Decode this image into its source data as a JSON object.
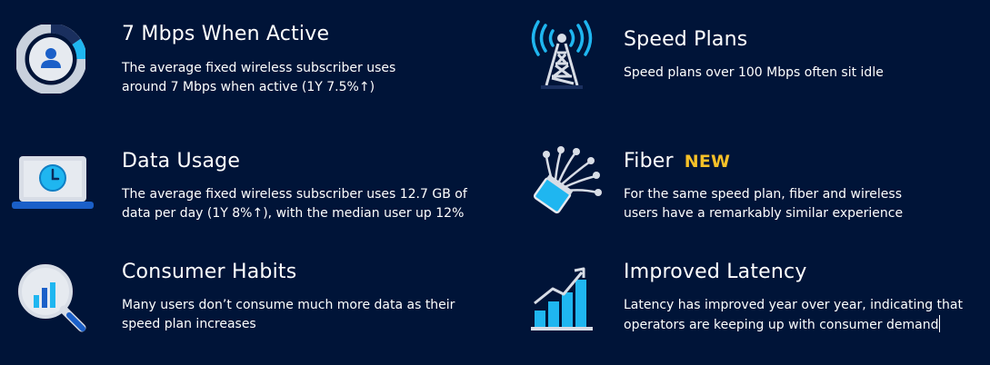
{
  "features": [
    {
      "icon": "user-gauge-icon",
      "title": "7 Mbps When Active",
      "desc_lines": [
        "The average fixed wireless subscriber uses",
        "around 7 Mbps when active (1Y 7.5%↑)"
      ]
    },
    {
      "icon": "cell-tower-icon",
      "title": "Speed Plans",
      "desc_lines": [
        "Speed plans over 100 Mbps often sit idle"
      ]
    },
    {
      "icon": "laptop-clock-icon",
      "title": "Data Usage",
      "desc_lines": [
        "The average fixed wireless subscriber uses 12.7 GB of",
        "data per day (1Y 8%↑), with the median user up 12%"
      ]
    },
    {
      "icon": "fiber-optic-icon",
      "title": "Fiber",
      "badge": "NEW",
      "desc_lines": [
        "For the same speed plan, fiber and wireless",
        "users have a remarkably similar experience"
      ]
    },
    {
      "icon": "magnifier-chart-icon",
      "title": "Consumer Habits",
      "desc_lines": [
        "Many users don’t consume much more data as their",
        "speed plan increases"
      ]
    },
    {
      "icon": "growth-chart-icon",
      "title": "Improved Latency",
      "desc_lines": [
        "Latency has improved year over year, indicating that",
        "operators are keeping up with consumer demand"
      ]
    }
  ],
  "colors": {
    "background": "#001438",
    "accent_blue": "#1fb6f0",
    "light_gray": "#d8dde6",
    "badge": "#f5c028"
  }
}
